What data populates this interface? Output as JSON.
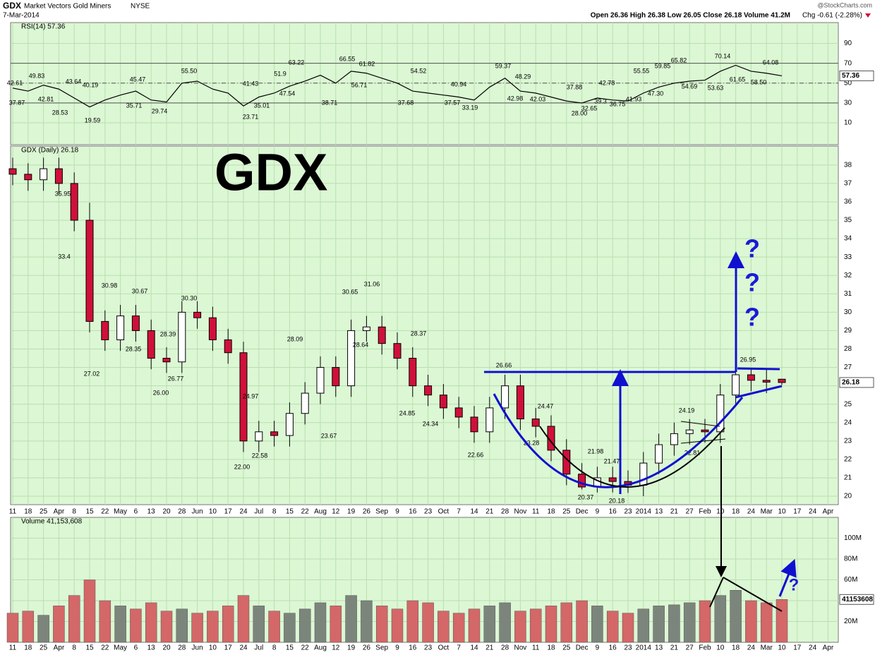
{
  "header": {
    "symbol": "GDX",
    "name": "Market Vectors Gold Miners",
    "exchange": "NYSE",
    "date": "7-Mar-2014",
    "copyright": "@StockCharts.com",
    "quote": "Open 26.36  High 26.38  Low 26.05  Close 26.18  Volume 41.2M",
    "change": "Chg -0.61 (-2.28%)"
  },
  "watermark": "GDX",
  "question_mark": "?",
  "chart_data": [
    {
      "type": "line",
      "title": "RSI(14) 57.36",
      "last_label": 57.36,
      "color": "#000000",
      "ylim": [
        -12,
        111
      ],
      "yticks": [
        10,
        30,
        50,
        70,
        90
      ],
      "levels": [
        30,
        50,
        70
      ],
      "values": [
        45,
        42,
        48,
        44,
        35,
        26,
        33,
        38,
        42,
        33,
        31,
        50,
        52,
        44,
        40,
        27,
        36,
        40,
        47,
        52,
        58,
        50,
        62,
        60,
        55,
        50,
        42,
        40,
        38,
        36,
        33,
        46,
        55,
        42,
        40,
        36,
        32,
        30,
        35,
        33,
        32,
        40,
        46,
        50,
        52,
        53,
        62,
        68,
        62,
        60,
        57.36,
        null,
        null,
        null
      ],
      "annotations": [
        42.61,
        37.87,
        49.83,
        42.81,
        43.64,
        28.53,
        40.19,
        19.59,
        45.47,
        35.71,
        29.74,
        {
          "value": 55.5,
          "label": "55.50"
        },
        41.43,
        23.71,
        35.01,
        51.9,
        47.54,
        63.22,
        38.71,
        66.55,
        61.82,
        56.71,
        54.52,
        37.68,
        40.94,
        37.57,
        33.19,
        59.37,
        48.29,
        42.98,
        42.03,
        37.88,
        {
          "value": 28,
          "label": "28.00"
        },
        32.65,
        39.3,
        42.78,
        36.75,
        41.93,
        55.55,
        {
          "value": 47.3,
          "label": "47.30"
        },
        59.85,
        65.82,
        54.69,
        53.63,
        70.14,
        61.65,
        {
          "value": 58.5,
          "label": "58.50"
        },
        64.08
      ]
    },
    {
      "type": "candlestick",
      "title": "GDX (Daily) 26.18",
      "last_label": 26.18,
      "up_color": "#000000",
      "down_color": "#d0103a",
      "ylim": [
        19.54,
        39.03
      ],
      "yticks": [
        20,
        21,
        22,
        23,
        24,
        25,
        26,
        27,
        28,
        29,
        30,
        31,
        32,
        33,
        34,
        35,
        36,
        37,
        38
      ],
      "categories": [
        "11",
        "18",
        "25",
        "Apr",
        "8",
        "15",
        "22",
        "May",
        "6",
        "13",
        "20",
        "28",
        "Jun",
        "10",
        "17",
        "24",
        "Jul",
        "8",
        "15",
        "22",
        "Aug",
        "12",
        "19",
        "26",
        "Sep",
        "9",
        "16",
        "23",
        "Oct",
        "7",
        "14",
        "21",
        "28",
        "Nov",
        "11",
        "18",
        "25",
        "Dec",
        "9",
        "16",
        "23",
        "2014",
        "13",
        "21",
        "27",
        "Feb",
        "10",
        "18",
        "24",
        "Mar",
        "10",
        "17",
        "24",
        "Apr"
      ],
      "open": [
        37.8,
        37.5,
        37.2,
        37.8,
        37.0,
        35.0,
        29.5,
        28.5,
        29.8,
        29.0,
        27.5,
        27.3,
        30.0,
        29.7,
        28.5,
        27.8,
        23.0,
        23.5,
        23.3,
        24.5,
        25.6,
        27.0,
        26.0,
        29.0,
        29.2,
        28.3,
        27.5,
        26.0,
        25.5,
        24.8,
        24.3,
        23.5,
        24.8,
        26.0,
        24.2,
        23.8,
        22.5,
        21.2,
        20.5,
        21.0,
        20.8,
        20.6,
        21.8,
        22.8,
        23.4,
        23.6,
        23.5,
        25.5,
        26.6,
        26.3,
        26.36,
        null,
        null,
        null
      ],
      "high": [
        38.4,
        38.1,
        38.4,
        38.4,
        37.6,
        35.95,
        30.1,
        30.4,
        30.4,
        29.6,
        28.1,
        30.6,
        30.6,
        30.3,
        29.1,
        28.4,
        24.1,
        24.1,
        25.1,
        26.2,
        27.6,
        27.6,
        29.6,
        29.8,
        29.8,
        28.9,
        28.1,
        26.6,
        26.1,
        25.4,
        24.9,
        25.4,
        26.6,
        26.6,
        24.8,
        24.4,
        23.1,
        21.8,
        21.6,
        21.6,
        21.4,
        22.4,
        23.4,
        24.0,
        24.19,
        24.2,
        26.1,
        26.95,
        26.9,
        26.9,
        26.38,
        null,
        null,
        null
      ],
      "low": [
        36.9,
        36.6,
        36.6,
        36.4,
        34.4,
        28.9,
        27.9,
        27.9,
        28.4,
        26.9,
        26.7,
        26.7,
        29.1,
        27.9,
        27.2,
        22.4,
        22.4,
        22.7,
        22.7,
        23.9,
        25.0,
        25.4,
        25.4,
        28.4,
        27.7,
        26.9,
        25.4,
        24.9,
        24.2,
        23.7,
        22.9,
        22.9,
        24.2,
        23.6,
        23.2,
        21.9,
        20.6,
        20.37,
        20.2,
        20.2,
        20.18,
        20.0,
        21.2,
        22.2,
        22.81,
        22.9,
        22.9,
        24.9,
        25.7,
        25.6,
        26.05,
        null,
        null,
        null
      ],
      "close": [
        37.5,
        37.2,
        37.8,
        37.0,
        35.0,
        29.5,
        28.5,
        29.8,
        29.0,
        27.5,
        27.3,
        30.0,
        29.7,
        28.5,
        27.8,
        23.0,
        23.5,
        23.3,
        24.5,
        25.6,
        27.0,
        26.0,
        29.0,
        29.2,
        28.3,
        27.5,
        26.0,
        25.5,
        24.8,
        24.3,
        23.5,
        24.8,
        26.0,
        24.2,
        23.8,
        22.5,
        21.2,
        20.5,
        21.0,
        20.8,
        20.6,
        21.8,
        22.8,
        23.4,
        23.6,
        23.5,
        25.5,
        26.6,
        26.3,
        26.2,
        26.18,
        null,
        null,
        null
      ],
      "annotations": [
        35.95,
        33.4,
        30.98,
        27.02,
        30.67,
        28.35,
        {
          "value": 30.3,
          "label": "30.30"
        },
        28.39,
        26.77,
        {
          "value": 26,
          "label": "26.00"
        },
        24.97,
        {
          "value": 22,
          "label": "22.00"
        },
        22.58,
        28.09,
        23.67,
        30.65,
        31.06,
        28.64,
        28.37,
        24.85,
        24.34,
        22.66,
        26.66,
        24.47,
        23.28,
        21.98,
        21.47,
        20.37,
        20.18,
        24.19,
        22.81,
        26.95
      ]
    },
    {
      "type": "bar",
      "title": "Volume 41,153,608",
      "last_label": "41153608",
      "colors": {
        "up": "#7c857c",
        "down": "#d46767"
      },
      "ylim": [
        0,
        120
      ],
      "yticks": [
        {
          "value": 20,
          "label": "20M"
        },
        {
          "value": 40,
          "label": "40M"
        },
        {
          "value": 60,
          "label": "60M"
        },
        {
          "value": 80,
          "label": "80M"
        },
        {
          "value": 100,
          "label": "100M"
        }
      ],
      "categories": [
        "11",
        "18",
        "25",
        "Apr",
        "8",
        "15",
        "22",
        "May",
        "6",
        "13",
        "20",
        "28",
        "Jun",
        "10",
        "17",
        "24",
        "Jul",
        "8",
        "15",
        "22",
        "Aug",
        "12",
        "19",
        "26",
        "Sep",
        "9",
        "16",
        "23",
        "Oct",
        "7",
        "14",
        "21",
        "28",
        "Nov",
        "11",
        "18",
        "25",
        "Dec",
        "9",
        "16",
        "23",
        "2014",
        "13",
        "21",
        "27",
        "Feb",
        "10",
        "18",
        "24",
        "Mar",
        "10",
        "17",
        "24",
        "Apr"
      ],
      "values": [
        28,
        30,
        26,
        35,
        45,
        60,
        40,
        35,
        32,
        38,
        30,
        32,
        28,
        30,
        35,
        45,
        35,
        30,
        28,
        32,
        38,
        35,
        45,
        40,
        35,
        32,
        40,
        38,
        30,
        28,
        32,
        35,
        38,
        30,
        32,
        35,
        38,
        40,
        35,
        30,
        28,
        32,
        35,
        36,
        38,
        40,
        45,
        50,
        40,
        38,
        41.15,
        null,
        null,
        null
      ]
    }
  ]
}
